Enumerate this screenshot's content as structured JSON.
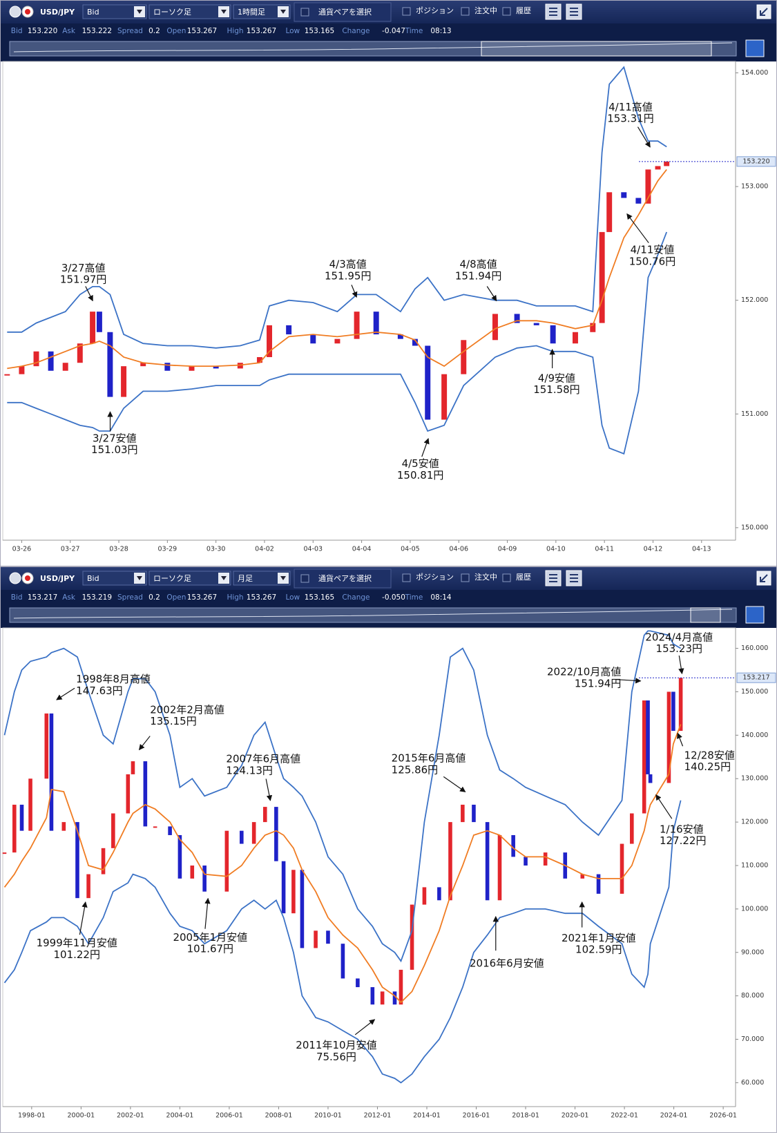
{
  "panels": [
    {
      "toolbar": {
        "pair": "USD/JPY",
        "price_type": "Bid",
        "chart_type": "ローソク足",
        "timeframe": "1時間足",
        "select_pair": "通貨ペアを選択",
        "positions": "ポジション",
        "orders": "注文中",
        "history": "履歴"
      },
      "quote": [
        {
          "label": "Bid",
          "value": "153.220"
        },
        {
          "label": "Ask",
          "value": "153.222"
        },
        {
          "label": "Spread",
          "value": "0.2"
        },
        {
          "label": "Open",
          "value": "153.267"
        },
        {
          "label": "High",
          "value": "153.267"
        },
        {
          "label": "Low",
          "value": "153.165"
        },
        {
          "label": "Change",
          "value": "-0.047"
        },
        {
          "label": "Time",
          "value": "08:13"
        }
      ]
    },
    {
      "toolbar": {
        "pair": "USD/JPY",
        "price_type": "Bid",
        "chart_type": "ローソク足",
        "timeframe": "月足",
        "select_pair": "通貨ペアを選択",
        "positions": "ポジション",
        "orders": "注文中",
        "history": "履歴"
      },
      "quote": [
        {
          "label": "Bid",
          "value": "153.217"
        },
        {
          "label": "Ask",
          "value": "153.219"
        },
        {
          "label": "Spread",
          "value": "0.2"
        },
        {
          "label": "Open",
          "value": "153.267"
        },
        {
          "label": "High",
          "value": "153.267"
        },
        {
          "label": "Low",
          "value": "153.165"
        },
        {
          "label": "Change",
          "value": "-0.050"
        },
        {
          "label": "Time",
          "value": "08:14"
        }
      ]
    }
  ],
  "chart_data": [
    {
      "type": "candlestick",
      "x": [
        -0.3,
        0,
        0.3,
        0.6,
        0.9,
        1.2,
        1.46,
        1.6,
        1.82,
        2.1,
        2.5,
        3.0,
        3.5,
        4.0,
        4.5,
        4.9,
        5.1,
        5.5,
        6.0,
        6.5,
        6.9,
        7.3,
        7.8,
        8.1,
        8.36,
        8.7,
        9.1,
        9.75,
        10.2,
        10.6,
        10.94,
        11.4,
        11.76,
        11.95,
        12.1,
        12.4,
        12.7,
        12.9,
        13.1,
        13.28
      ],
      "xlim": [
        -0.39,
        14.7
      ],
      "xticks": [
        {
          "value": 0,
          "label": "03-26"
        },
        {
          "value": 1,
          "label": "03-27"
        },
        {
          "value": 2,
          "label": "03-28"
        },
        {
          "value": 3,
          "label": "03-29"
        },
        {
          "value": 4,
          "label": "03-30"
        },
        {
          "value": 5,
          "label": "04-02"
        },
        {
          "value": 6,
          "label": "04-03"
        },
        {
          "value": 7,
          "label": "04-04"
        },
        {
          "value": 8,
          "label": "04-05"
        },
        {
          "value": 9,
          "label": "04-06"
        },
        {
          "value": 10,
          "label": "04-09"
        },
        {
          "value": 11,
          "label": "04-10"
        },
        {
          "value": 12,
          "label": "04-11"
        },
        {
          "value": 13,
          "label": "04-12"
        },
        {
          "value": 14,
          "label": "04-13"
        }
      ],
      "ylim": [
        149.89,
        154.1
      ],
      "yticks": [
        {
          "value": 150,
          "label": "150.000"
        },
        {
          "value": 151,
          "label": "151.000"
        },
        {
          "value": 152,
          "label": "152.000"
        },
        {
          "value": 153,
          "label": "153.000"
        },
        {
          "value": 154,
          "label": "154.000"
        }
      ],
      "series": [
        {
          "up_color": "#e3262c",
          "down_color": "#1f22c8",
          "values": [
            151.35,
            151.42,
            151.55,
            151.38,
            151.45,
            151.62,
            151.9,
            151.72,
            151.15,
            151.42,
            151.45,
            151.38,
            151.42,
            151.4,
            151.45,
            151.5,
            151.78,
            151.7,
            151.62,
            151.66,
            151.9,
            151.7,
            151.66,
            151.6,
            150.95,
            151.35,
            151.65,
            151.88,
            151.8,
            151.78,
            151.62,
            151.72,
            151.8,
            152.6,
            152.95,
            152.9,
            152.85,
            153.15,
            153.18,
            153.22
          ]
        },
        {
          "color": "#f07c22",
          "values": [
            151.4,
            151.42,
            151.45,
            151.5,
            151.55,
            151.6,
            151.62,
            151.64,
            151.6,
            151.5,
            151.45,
            151.43,
            151.42,
            151.42,
            151.43,
            151.45,
            151.55,
            151.68,
            151.7,
            151.68,
            151.7,
            151.72,
            151.7,
            151.65,
            151.5,
            151.42,
            151.55,
            151.75,
            151.82,
            151.82,
            151.8,
            151.75,
            151.78,
            152.0,
            152.2,
            152.55,
            152.75,
            152.9,
            153.05,
            153.15
          ]
        },
        {
          "color": "#3b72c6",
          "values": [
            151.72,
            151.72,
            151.8,
            151.85,
            151.9,
            152.05,
            152.12,
            152.12,
            152.05,
            151.7,
            151.62,
            151.6,
            151.6,
            151.58,
            151.6,
            151.65,
            151.95,
            152.0,
            151.98,
            151.9,
            152.05,
            152.05,
            151.9,
            152.1,
            152.2,
            152.0,
            152.05,
            152.0,
            152.0,
            151.95,
            151.95,
            151.95,
            151.9,
            153.3,
            153.9,
            154.05,
            153.6,
            153.4,
            153.4,
            153.35
          ]
        },
        {
          "color": "#3b72c6",
          "values": [
            151.1,
            151.1,
            151.05,
            151.0,
            150.95,
            150.9,
            150.88,
            150.85,
            150.85,
            151.05,
            151.2,
            151.2,
            151.22,
            151.25,
            151.25,
            151.25,
            151.3,
            151.35,
            151.35,
            151.35,
            151.35,
            151.35,
            151.35,
            151.1,
            150.85,
            150.9,
            151.25,
            151.5,
            151.58,
            151.6,
            151.55,
            151.55,
            151.5,
            150.9,
            150.7,
            150.65,
            151.2,
            152.2,
            152.4,
            152.6
          ]
        }
      ],
      "last_price": {
        "value": 153.22,
        "label": "153.220"
      },
      "annotations": [
        {
          "label": "3/27高値",
          "price": "151.97円"
        },
        {
          "label": "3/27安値",
          "price": "151.03円"
        },
        {
          "label": "4/3高値",
          "price": "151.95円"
        },
        {
          "label": "4/5安値",
          "price": "150.81円"
        },
        {
          "label": "4/8高値",
          "price": "151.94円"
        },
        {
          "label": "4/9安値",
          "price": "151.58円"
        },
        {
          "label": "4/11高値",
          "price": "153.31円"
        },
        {
          "label": "4/11安値",
          "price": "150.76円"
        }
      ]
    },
    {
      "type": "candlestick",
      "x": [
        1996.9,
        1997.3,
        1997.6,
        1997.95,
        1998.6,
        1998.8,
        1999.3,
        1999.85,
        2000.3,
        2000.9,
        2001.3,
        2001.9,
        2002.1,
        2002.6,
        2003.0,
        2003.6,
        2004.0,
        2004.5,
        2005.0,
        2005.9,
        2006.5,
        2007.0,
        2007.45,
        2007.9,
        2008.2,
        2008.6,
        2008.95,
        2009.5,
        2010.0,
        2010.6,
        2011.2,
        2011.8,
        2012.2,
        2012.7,
        2012.95,
        2013.4,
        2013.9,
        2014.5,
        2014.95,
        2015.45,
        2015.9,
        2016.45,
        2016.95,
        2017.5,
        2018.0,
        2018.8,
        2019.6,
        2020.3,
        2020.95,
        2021.9,
        2022.3,
        2022.8,
        2022.95,
        2023.05,
        2023.8,
        2023.98,
        2024.28
      ],
      "xlim": [
        1996.83,
        2026.5
      ],
      "xticks": [
        {
          "value": 1998,
          "label": "1998-01"
        },
        {
          "value": 2000,
          "label": "2000-01"
        },
        {
          "value": 2002,
          "label": "2002-01"
        },
        {
          "value": 2004,
          "label": "2004-01"
        },
        {
          "value": 2006,
          "label": "2006-01"
        },
        {
          "value": 2008,
          "label": "2008-01"
        },
        {
          "value": 2010,
          "label": "2010-01"
        },
        {
          "value": 2012,
          "label": "2012-01"
        },
        {
          "value": 2014,
          "label": "2014-01"
        },
        {
          "value": 2016,
          "label": "2016-01"
        },
        {
          "value": 2018,
          "label": "2018-01"
        },
        {
          "value": 2020,
          "label": "2020-01"
        },
        {
          "value": 2022,
          "label": "2022-01"
        },
        {
          "value": 2024,
          "label": "2024-01"
        },
        {
          "value": 2026,
          "label": "2026-01"
        }
      ],
      "ylim": [
        54.5,
        164.7
      ],
      "yticks": [
        {
          "value": 60,
          "label": "60.000"
        },
        {
          "value": 70,
          "label": "70.000"
        },
        {
          "value": 80,
          "label": "80.000"
        },
        {
          "value": 90,
          "label": "90.000"
        },
        {
          "value": 100,
          "label": "100.000"
        },
        {
          "value": 110,
          "label": "110.000"
        },
        {
          "value": 120,
          "label": "120.000"
        },
        {
          "value": 130,
          "label": "130.000"
        },
        {
          "value": 140,
          "label": "140.000"
        },
        {
          "value": 150,
          "label": "150.000"
        },
        {
          "value": 160,
          "label": "160.000"
        }
      ],
      "series": [
        {
          "up_color": "#e3262c",
          "down_color": "#1f22c8",
          "values": [
            113,
            124,
            118,
            130,
            145,
            118,
            120,
            102.5,
            108,
            114,
            122,
            131,
            134,
            119,
            119,
            117,
            107,
            110,
            104,
            118,
            115,
            120,
            123.5,
            111,
            99,
            109,
            91,
            95,
            92,
            84,
            82,
            78,
            81,
            78,
            86,
            101,
            105,
            102,
            120,
            124,
            120,
            102,
            117,
            112,
            110,
            113,
            107,
            108,
            103.5,
            115,
            122,
            148,
            131,
            129,
            150,
            141,
            153.2
          ]
        },
        {
          "color": "#f07c22",
          "values": [
            105,
            108,
            111,
            114,
            121,
            127.5,
            127,
            118,
            110,
            109,
            113,
            120,
            122,
            124,
            123,
            120,
            116,
            113,
            108,
            107.5,
            110,
            114,
            117,
            118,
            117,
            114,
            109,
            104,
            98,
            94,
            91,
            86,
            82,
            80,
            78.5,
            81,
            87,
            95,
            103,
            110,
            117,
            118,
            117,
            114,
            112,
            112,
            110,
            108,
            107,
            107,
            110,
            118,
            122,
            124,
            131,
            138,
            142.5
          ]
        },
        {
          "color": "#3b72c6",
          "values": [
            140,
            150,
            155,
            157,
            158,
            159,
            160,
            158,
            150,
            140,
            138,
            150,
            153,
            153,
            150,
            140,
            128,
            130,
            126,
            128,
            133,
            140,
            143,
            135,
            130,
            128,
            126,
            120,
            112,
            108,
            100,
            96,
            92,
            90,
            88,
            95,
            120,
            140,
            158,
            160,
            155,
            140,
            132,
            130,
            128,
            126,
            124,
            120,
            117,
            125,
            150,
            163,
            164,
            164,
            163,
            161,
            160
          ]
        },
        {
          "color": "#3b72c6",
          "values": [
            83,
            86,
            90,
            95,
            97,
            98,
            98,
            96,
            92,
            98,
            104,
            106,
            108,
            107,
            105,
            99,
            96,
            95,
            92,
            95,
            100,
            102,
            100,
            102,
            98,
            90,
            80,
            75,
            74,
            72,
            70,
            66,
            62,
            61,
            60,
            62,
            66,
            70,
            75,
            82,
            90,
            94,
            98,
            99,
            100,
            100,
            99,
            99,
            96,
            92,
            85,
            82,
            85,
            92,
            105,
            118,
            125
          ]
        }
      ],
      "last_price": {
        "value": 153.217,
        "label": "153.217"
      },
      "annotations": [
        {
          "label": "1998年8月高値",
          "price": "147.63円"
        },
        {
          "label": "2002年2月高値",
          "price": "135.15円"
        },
        {
          "label": "2007年6月高値",
          "price": "124.13円"
        },
        {
          "label": "1999年11月安値",
          "price": "101.22円"
        },
        {
          "label": "2005年1月安値",
          "price": "101.67円"
        },
        {
          "label": "2011年10月安値",
          "price": "75.56円"
        },
        {
          "label": "2015年6月高値",
          "price": "125.86円"
        },
        {
          "label": "2016年6月安値"
        },
        {
          "label": "2021年1月安値",
          "price": "102.59円"
        },
        {
          "label": "2022/10月高値",
          "price": "151.94円"
        },
        {
          "label": "2024/4月高値",
          "price": "153.23円"
        },
        {
          "label": "12/28安値",
          "price": "140.25円"
        },
        {
          "label": "1/16安値",
          "price": "127.22円"
        }
      ]
    }
  ]
}
